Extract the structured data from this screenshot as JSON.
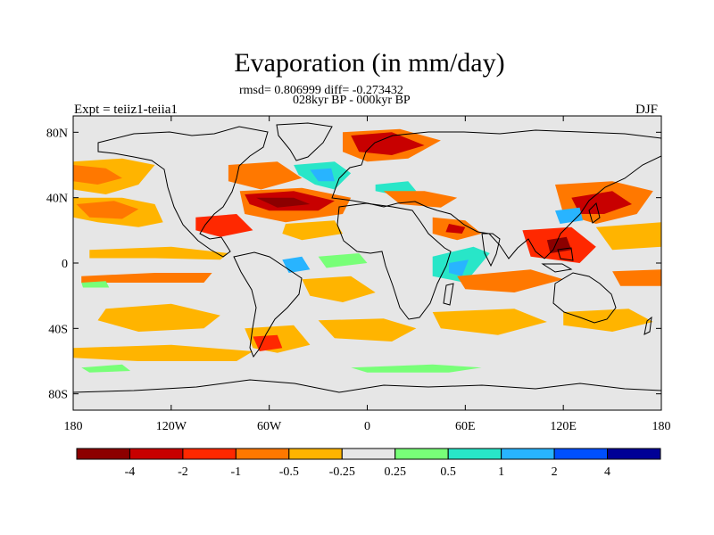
{
  "title": "Evaporation (in mm/day)",
  "stats": "rmsd= 0.806999 diff= -0.273432",
  "subtitle": "028kyr BP - 000kyr BP",
  "left_label": "Expt = teiiz1-teiia1",
  "right_label": "DJF",
  "map": {
    "lon_range": [
      -180,
      180
    ],
    "lat_range": [
      -90,
      90
    ],
    "x_ticks": [
      {
        "value": -180,
        "label": "180"
      },
      {
        "value": -120,
        "label": "120W"
      },
      {
        "value": -60,
        "label": "60W"
      },
      {
        "value": 0,
        "label": "0"
      },
      {
        "value": 60,
        "label": "60E"
      },
      {
        "value": 120,
        "label": "120E"
      },
      {
        "value": 180,
        "label": "180"
      }
    ],
    "y_ticks": [
      {
        "value": 80,
        "label": "80N"
      },
      {
        "value": 40,
        "label": "40N"
      },
      {
        "value": 0,
        "label": "0"
      },
      {
        "value": -40,
        "label": "40S"
      },
      {
        "value": -80,
        "label": "80S"
      }
    ],
    "background_color": "#e6e6e6"
  },
  "colorbar": {
    "colors": [
      "#8c0000",
      "#c80000",
      "#ff2800",
      "#ff7800",
      "#ffb400",
      "#e6e6e6",
      "#78ff78",
      "#28e6c8",
      "#28b4ff",
      "#0050ff",
      "#000096"
    ],
    "labels": [
      "-4",
      "-2",
      "-1",
      "-0.5",
      "-0.25",
      "0.25",
      "0.5",
      "1",
      "2",
      "4"
    ]
  },
  "chart_data": {
    "type": "heatmap",
    "regions": [
      {
        "color": "#ffb400",
        "pts": [
          [
            -180,
            62
          ],
          [
            -150,
            64
          ],
          [
            -130,
            60
          ],
          [
            -140,
            48
          ],
          [
            -160,
            42
          ],
          [
            -180,
            45
          ]
        ]
      },
      {
        "color": "#ff7800",
        "pts": [
          [
            -180,
            60
          ],
          [
            -160,
            58
          ],
          [
            -150,
            52
          ],
          [
            -165,
            48
          ],
          [
            -180,
            50
          ]
        ]
      },
      {
        "color": "#ffb400",
        "pts": [
          [
            -180,
            40
          ],
          [
            -150,
            40
          ],
          [
            -130,
            36
          ],
          [
            -125,
            25
          ],
          [
            -140,
            22
          ],
          [
            -165,
            25
          ],
          [
            -180,
            28
          ]
        ]
      },
      {
        "color": "#ff7800",
        "pts": [
          [
            -178,
            36
          ],
          [
            -155,
            38
          ],
          [
            -140,
            33
          ],
          [
            -150,
            27
          ],
          [
            -170,
            28
          ]
        ]
      },
      {
        "color": "#ffb400",
        "pts": [
          [
            -170,
            8
          ],
          [
            -120,
            10
          ],
          [
            -85,
            6
          ],
          [
            -90,
            2
          ],
          [
            -130,
            3
          ],
          [
            -170,
            3
          ]
        ]
      },
      {
        "color": "#ff7800",
        "pts": [
          [
            -175,
            -8
          ],
          [
            -130,
            -6
          ],
          [
            -95,
            -6
          ],
          [
            -100,
            -12
          ],
          [
            -140,
            -12
          ],
          [
            -175,
            -12
          ]
        ]
      },
      {
        "color": "#ffb400",
        "pts": [
          [
            -160,
            -28
          ],
          [
            -120,
            -25
          ],
          [
            -90,
            -32
          ],
          [
            -100,
            -40
          ],
          [
            -140,
            -42
          ],
          [
            -165,
            -35
          ]
        ]
      },
      {
        "color": "#ffb400",
        "pts": [
          [
            -180,
            -52
          ],
          [
            -120,
            -50
          ],
          [
            -70,
            -54
          ],
          [
            -80,
            -60
          ],
          [
            -140,
            -60
          ],
          [
            -180,
            -58
          ]
        ]
      },
      {
        "color": "#78ff78",
        "pts": [
          [
            -175,
            -12
          ],
          [
            -160,
            -11
          ],
          [
            -158,
            -15
          ],
          [
            -174,
            -15
          ]
        ]
      },
      {
        "color": "#78ff78",
        "pts": [
          [
            -175,
            -64
          ],
          [
            -150,
            -62
          ],
          [
            -145,
            -66
          ],
          [
            -170,
            -67
          ]
        ]
      },
      {
        "color": "#ff7800",
        "pts": [
          [
            -85,
            60
          ],
          [
            -55,
            62
          ],
          [
            -40,
            52
          ],
          [
            -65,
            45
          ],
          [
            -85,
            50
          ]
        ]
      },
      {
        "color": "#ff7800",
        "pts": [
          [
            -78,
            44
          ],
          [
            -40,
            46
          ],
          [
            -10,
            40
          ],
          [
            -15,
            30
          ],
          [
            -50,
            25
          ],
          [
            -75,
            30
          ]
        ]
      },
      {
        "color": "#c80000",
        "pts": [
          [
            -75,
            42
          ],
          [
            -45,
            44
          ],
          [
            -20,
            38
          ],
          [
            -30,
            32
          ],
          [
            -60,
            32
          ],
          [
            -72,
            36
          ]
        ]
      },
      {
        "color": "#8c0000",
        "pts": [
          [
            -68,
            40
          ],
          [
            -45,
            40
          ],
          [
            -35,
            36
          ],
          [
            -55,
            34
          ]
        ]
      },
      {
        "color": "#28e6c8",
        "pts": [
          [
            -45,
            60
          ],
          [
            -20,
            62
          ],
          [
            -10,
            55
          ],
          [
            -20,
            45
          ],
          [
            -32,
            48
          ],
          [
            -42,
            54
          ]
        ]
      },
      {
        "color": "#28b4ff",
        "pts": [
          [
            -35,
            57
          ],
          [
            -22,
            58
          ],
          [
            -20,
            50
          ],
          [
            -30,
            50
          ]
        ]
      },
      {
        "color": "#ff7800",
        "pts": [
          [
            -15,
            80
          ],
          [
            20,
            82
          ],
          [
            45,
            75
          ],
          [
            25,
            64
          ],
          [
            0,
            62
          ],
          [
            -15,
            68
          ]
        ]
      },
      {
        "color": "#c80000",
        "pts": [
          [
            -10,
            78
          ],
          [
            15,
            80
          ],
          [
            35,
            72
          ],
          [
            15,
            66
          ],
          [
            -5,
            68
          ]
        ]
      },
      {
        "color": "#28e6c8",
        "pts": [
          [
            5,
            48
          ],
          [
            25,
            50
          ],
          [
            30,
            44
          ],
          [
            15,
            42
          ],
          [
            5,
            44
          ]
        ]
      },
      {
        "color": "#ff7800",
        "pts": [
          [
            10,
            44
          ],
          [
            35,
            44
          ],
          [
            55,
            40
          ],
          [
            45,
            34
          ],
          [
            20,
            36
          ]
        ]
      },
      {
        "color": "#ff2800",
        "pts": [
          [
            -105,
            28
          ],
          [
            -80,
            30
          ],
          [
            -70,
            20
          ],
          [
            -90,
            16
          ],
          [
            -105,
            20
          ]
        ]
      },
      {
        "color": "#ffb400",
        "pts": [
          [
            -50,
            24
          ],
          [
            -20,
            26
          ],
          [
            -15,
            18
          ],
          [
            -40,
            14
          ],
          [
            -52,
            18
          ]
        ]
      },
      {
        "color": "#28b4ff",
        "pts": [
          [
            -52,
            2
          ],
          [
            -40,
            4
          ],
          [
            -35,
            -4
          ],
          [
            -48,
            -6
          ]
        ]
      },
      {
        "color": "#78ff78",
        "pts": [
          [
            -30,
            4
          ],
          [
            -5,
            6
          ],
          [
            0,
            0
          ],
          [
            -25,
            -3
          ]
        ]
      },
      {
        "color": "#ffb400",
        "pts": [
          [
            -40,
            -10
          ],
          [
            -10,
            -8
          ],
          [
            5,
            -18
          ],
          [
            -15,
            -24
          ],
          [
            -35,
            -20
          ]
        ]
      },
      {
        "color": "#ffb400",
        "pts": [
          [
            -75,
            -40
          ],
          [
            -45,
            -38
          ],
          [
            -35,
            -50
          ],
          [
            -55,
            -55
          ],
          [
            -70,
            -52
          ]
        ]
      },
      {
        "color": "#ff2800",
        "pts": [
          [
            -70,
            -45
          ],
          [
            -55,
            -44
          ],
          [
            -52,
            -52
          ],
          [
            -66,
            -54
          ]
        ]
      },
      {
        "color": "#ffb400",
        "pts": [
          [
            -30,
            -35
          ],
          [
            10,
            -34
          ],
          [
            30,
            -40
          ],
          [
            15,
            -48
          ],
          [
            -20,
            -46
          ]
        ]
      },
      {
        "color": "#78ff78",
        "pts": [
          [
            -10,
            -64
          ],
          [
            40,
            -62
          ],
          [
            70,
            -64
          ],
          [
            50,
            -67
          ],
          [
            0,
            -67
          ]
        ]
      },
      {
        "color": "#28e6c8",
        "pts": [
          [
            40,
            4
          ],
          [
            65,
            10
          ],
          [
            75,
            6
          ],
          [
            60,
            -12
          ],
          [
            40,
            -8
          ]
        ]
      },
      {
        "color": "#28b4ff",
        "pts": [
          [
            50,
            0
          ],
          [
            62,
            2
          ],
          [
            58,
            -8
          ],
          [
            50,
            -6
          ]
        ]
      },
      {
        "color": "#ff7800",
        "pts": [
          [
            40,
            28
          ],
          [
            60,
            26
          ],
          [
            70,
            18
          ],
          [
            55,
            14
          ],
          [
            40,
            18
          ]
        ]
      },
      {
        "color": "#c80000",
        "pts": [
          [
            50,
            24
          ],
          [
            60,
            22
          ],
          [
            58,
            18
          ],
          [
            48,
            19
          ]
        ]
      },
      {
        "color": "#ff7800",
        "pts": [
          [
            55,
            -8
          ],
          [
            100,
            -4
          ],
          [
            120,
            -10
          ],
          [
            90,
            -18
          ],
          [
            60,
            -16
          ]
        ]
      },
      {
        "color": "#ffb400",
        "pts": [
          [
            40,
            -30
          ],
          [
            90,
            -28
          ],
          [
            110,
            -36
          ],
          [
            80,
            -44
          ],
          [
            45,
            -40
          ]
        ]
      },
      {
        "color": "#ffb400",
        "pts": [
          [
            120,
            -30
          ],
          [
            160,
            -28
          ],
          [
            175,
            -36
          ],
          [
            150,
            -42
          ],
          [
            120,
            -38
          ]
        ]
      },
      {
        "color": "#ff7800",
        "pts": [
          [
            115,
            48
          ],
          [
            150,
            50
          ],
          [
            175,
            44
          ],
          [
            165,
            30
          ],
          [
            140,
            24
          ],
          [
            120,
            30
          ]
        ]
      },
      {
        "color": "#c80000",
        "pts": [
          [
            125,
            40
          ],
          [
            150,
            44
          ],
          [
            162,
            36
          ],
          [
            145,
            30
          ],
          [
            130,
            30
          ]
        ]
      },
      {
        "color": "#28b4ff",
        "pts": [
          [
            115,
            32
          ],
          [
            130,
            34
          ],
          [
            132,
            26
          ],
          [
            118,
            24
          ]
        ]
      },
      {
        "color": "#ff2800",
        "pts": [
          [
            95,
            20
          ],
          [
            125,
            22
          ],
          [
            140,
            10
          ],
          [
            130,
            0
          ],
          [
            100,
            4
          ]
        ]
      },
      {
        "color": "#8c0000",
        "pts": [
          [
            110,
            14
          ],
          [
            122,
            16
          ],
          [
            125,
            8
          ],
          [
            112,
            6
          ]
        ]
      },
      {
        "color": "#ffb400",
        "pts": [
          [
            140,
            22
          ],
          [
            180,
            25
          ],
          [
            180,
            10
          ],
          [
            150,
            8
          ]
        ]
      },
      {
        "color": "#ff7800",
        "pts": [
          [
            150,
            -5
          ],
          [
            180,
            -4
          ],
          [
            180,
            -14
          ],
          [
            155,
            -14
          ]
        ]
      }
    ]
  }
}
